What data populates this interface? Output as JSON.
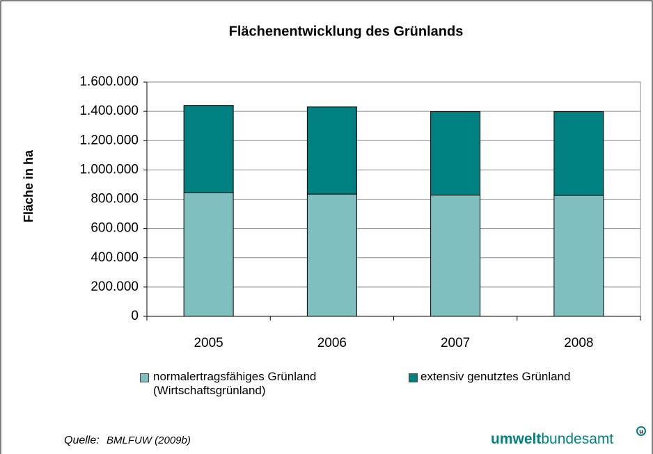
{
  "chart_data": {
    "type": "stacked_bar",
    "title": "Flächenentwicklung des Grünlands",
    "y_label": "Fläche in ha",
    "categories": [
      "2005",
      "2006",
      "2007",
      "2008"
    ],
    "series": [
      {
        "name": "normalertragsfähiges Grünland (Wirtschaftsgrünland)",
        "color": "#80bfbf",
        "values": [
          845000,
          835000,
          828000,
          826000
        ]
      },
      {
        "name": "extensiv genutztes Grünland",
        "color": "#008080",
        "values": [
          595000,
          595000,
          570000,
          572000
        ]
      }
    ],
    "ylim": [
      0,
      1600000
    ],
    "yticks": [
      0,
      {
        "value": 200000,
        "label": "200.000"
      },
      {
        "value": 400000,
        "label": "400.000"
      },
      {
        "value": 600000,
        "label": "600.000"
      },
      {
        "value": 800000,
        "label": "800.000"
      },
      {
        "value": 1000000,
        "label": "1.000.000"
      },
      {
        "value": 1200000,
        "label": "1.200.000"
      },
      {
        "value": 1400000,
        "label": "1.400.000"
      },
      {
        "value": 1600000,
        "label": "1.600.000"
      }
    ],
    "grid": true
  },
  "source": {
    "prefix": "Quelle:",
    "text": "BMLFUW (2009b)"
  },
  "logo": {
    "bold": "umwelt",
    "regular": "bundesamt",
    "mark": "u"
  }
}
